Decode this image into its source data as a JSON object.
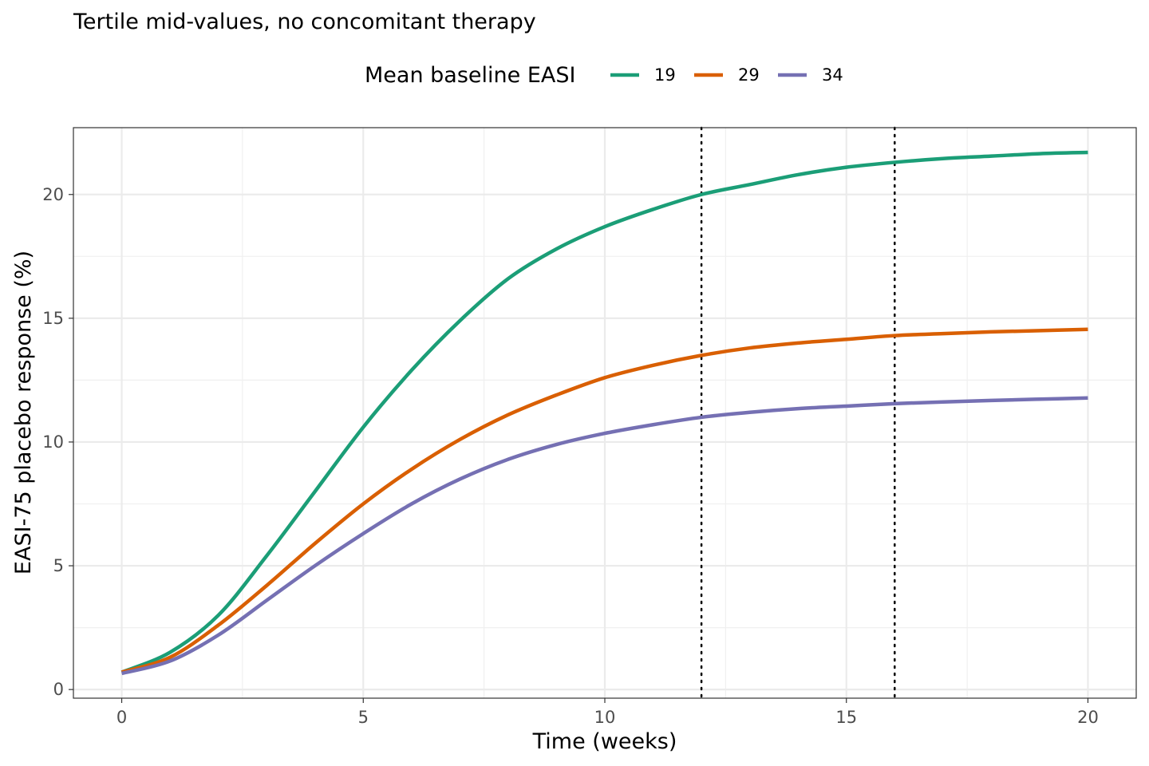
{
  "chart_data": {
    "type": "line",
    "title": "Tertile mid-values, no concomitant therapy",
    "xlabel": "Time (weeks)",
    "ylabel": "EASI-75 placebo response (%)",
    "xlim": [
      -1,
      21
    ],
    "ylim": [
      -0.35,
      22.7
    ],
    "xticks": [
      0,
      5,
      10,
      15,
      20
    ],
    "yticks": [
      0,
      5,
      10,
      15,
      20
    ],
    "grid": true,
    "legend": {
      "title": "Mean baseline EASI",
      "position": "top"
    },
    "reference_lines_x": [
      12,
      16
    ],
    "x": [
      0,
      1,
      2,
      3,
      4,
      5,
      6,
      7,
      8,
      9,
      10,
      11,
      12,
      13,
      14,
      15,
      16,
      17,
      18,
      19,
      20
    ],
    "series": [
      {
        "name": "19",
        "color": "#1b9e77",
        "values": [
          0.7,
          1.5,
          3.0,
          5.4,
          8.0,
          10.6,
          12.9,
          14.9,
          16.6,
          17.8,
          18.7,
          19.4,
          20.0,
          20.4,
          20.8,
          21.1,
          21.3,
          21.45,
          21.55,
          21.65,
          21.7
        ]
      },
      {
        "name": "29",
        "color": "#d95f02",
        "values": [
          0.7,
          1.3,
          2.6,
          4.2,
          5.9,
          7.5,
          8.9,
          10.1,
          11.1,
          11.9,
          12.6,
          13.1,
          13.5,
          13.8,
          14.0,
          14.15,
          14.3,
          14.38,
          14.45,
          14.5,
          14.55
        ]
      },
      {
        "name": "34",
        "color": "#7570b3",
        "values": [
          0.65,
          1.15,
          2.2,
          3.6,
          5.0,
          6.3,
          7.5,
          8.5,
          9.3,
          9.9,
          10.35,
          10.7,
          11.0,
          11.2,
          11.35,
          11.45,
          11.55,
          11.62,
          11.68,
          11.73,
          11.78
        ]
      }
    ]
  }
}
